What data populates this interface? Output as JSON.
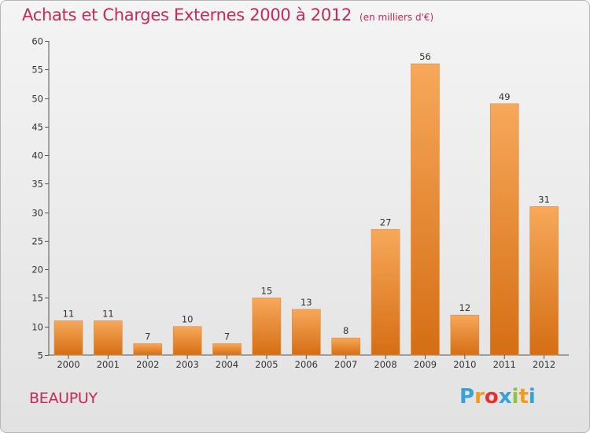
{
  "header": {
    "title": "Achats et Charges Externes 2000 à 2012",
    "unit": "(en milliers d'€)"
  },
  "footer": {
    "region": "BEAUPUY",
    "logo_letters": [
      "P",
      "r",
      "o",
      "x",
      "i",
      "t",
      "i"
    ],
    "logo_colors": [
      "#3aa0d8",
      "#f29c1f",
      "#e2342f",
      "#3aa0d8",
      "#8cc63f",
      "#f29c1f",
      "#3aa0d8"
    ]
  },
  "colors": {
    "bar_top": "#f7a85a",
    "bar_bottom": "#d56e14",
    "title": "#c8285a"
  },
  "chart_data": {
    "type": "bar",
    "title": "Achats et Charges Externes 2000 à 2012",
    "subtitle": "(en milliers d'€)",
    "xlabel": "",
    "ylabel": "",
    "categories": [
      "2000",
      "2001",
      "2002",
      "2003",
      "2004",
      "2005",
      "2006",
      "2007",
      "2008",
      "2009",
      "2010",
      "2011",
      "2012"
    ],
    "values": [
      11,
      11,
      7,
      10,
      7,
      15,
      13,
      8,
      27,
      56,
      12,
      49,
      31
    ],
    "ylim": [
      5,
      60
    ],
    "yticks": [
      5,
      10,
      15,
      20,
      25,
      30,
      35,
      40,
      45,
      50,
      55,
      60
    ],
    "grid": false,
    "legend": "none"
  }
}
